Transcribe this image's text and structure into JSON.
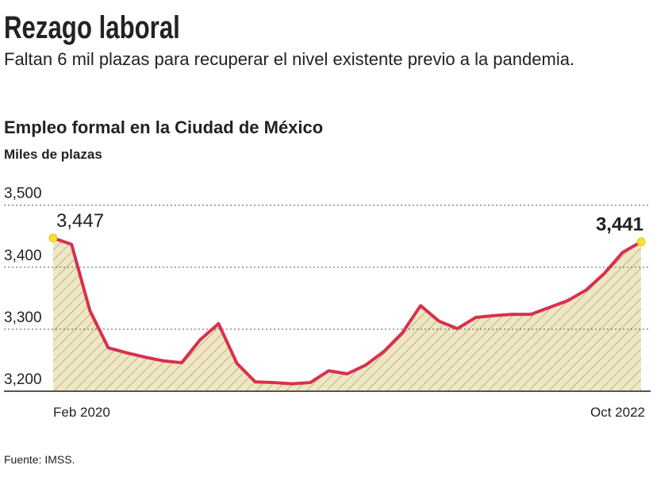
{
  "header": {
    "title": "Rezago laboral",
    "subtitle": "Faltan 6 mil plazas para recuperar el nivel existente previo a la pandemia."
  },
  "chart_data": {
    "type": "area",
    "title": "Empleo formal en la Ciudad de México",
    "subtitle": "Miles de plazas",
    "categories": [
      "Feb 2020",
      null,
      null,
      null,
      null,
      null,
      null,
      null,
      null,
      null,
      null,
      null,
      null,
      null,
      null,
      null,
      null,
      null,
      null,
      null,
      null,
      null,
      null,
      null,
      null,
      null,
      null,
      null,
      null,
      null,
      null,
      null,
      "Oct 2022"
    ],
    "series": [
      {
        "name": "Empleo formal",
        "color": "#d8304f",
        "fill": "#efe7c3",
        "values": [
          3447,
          3437,
          3330,
          3270,
          3262,
          3255,
          3249,
          3246,
          3283,
          3309,
          3245,
          3215,
          3214,
          3212,
          3214,
          3233,
          3228,
          3242,
          3264,
          3294,
          3338,
          3313,
          3301,
          3319,
          3322,
          3324,
          3324,
          3335,
          3346,
          3363,
          3390,
          3424,
          3441
        ],
        "value_labels": [
          "3,447",
          null,
          null,
          null,
          null,
          null,
          null,
          null,
          null,
          null,
          null,
          null,
          null,
          null,
          null,
          null,
          null,
          null,
          null,
          null,
          null,
          null,
          null,
          null,
          null,
          null,
          null,
          null,
          null,
          null,
          null,
          null,
          "3,441"
        ]
      }
    ],
    "ylim": [
      3200,
      3520
    ],
    "yticks": [
      {
        "value": 3200,
        "label": "3,200"
      },
      {
        "value": 3300,
        "label": "3,300"
      },
      {
        "value": 3400,
        "label": "3,400"
      },
      {
        "value": 3500,
        "label": "3,500"
      }
    ],
    "grid": true
  },
  "footer": {
    "source": "Fuente: IMSS."
  }
}
